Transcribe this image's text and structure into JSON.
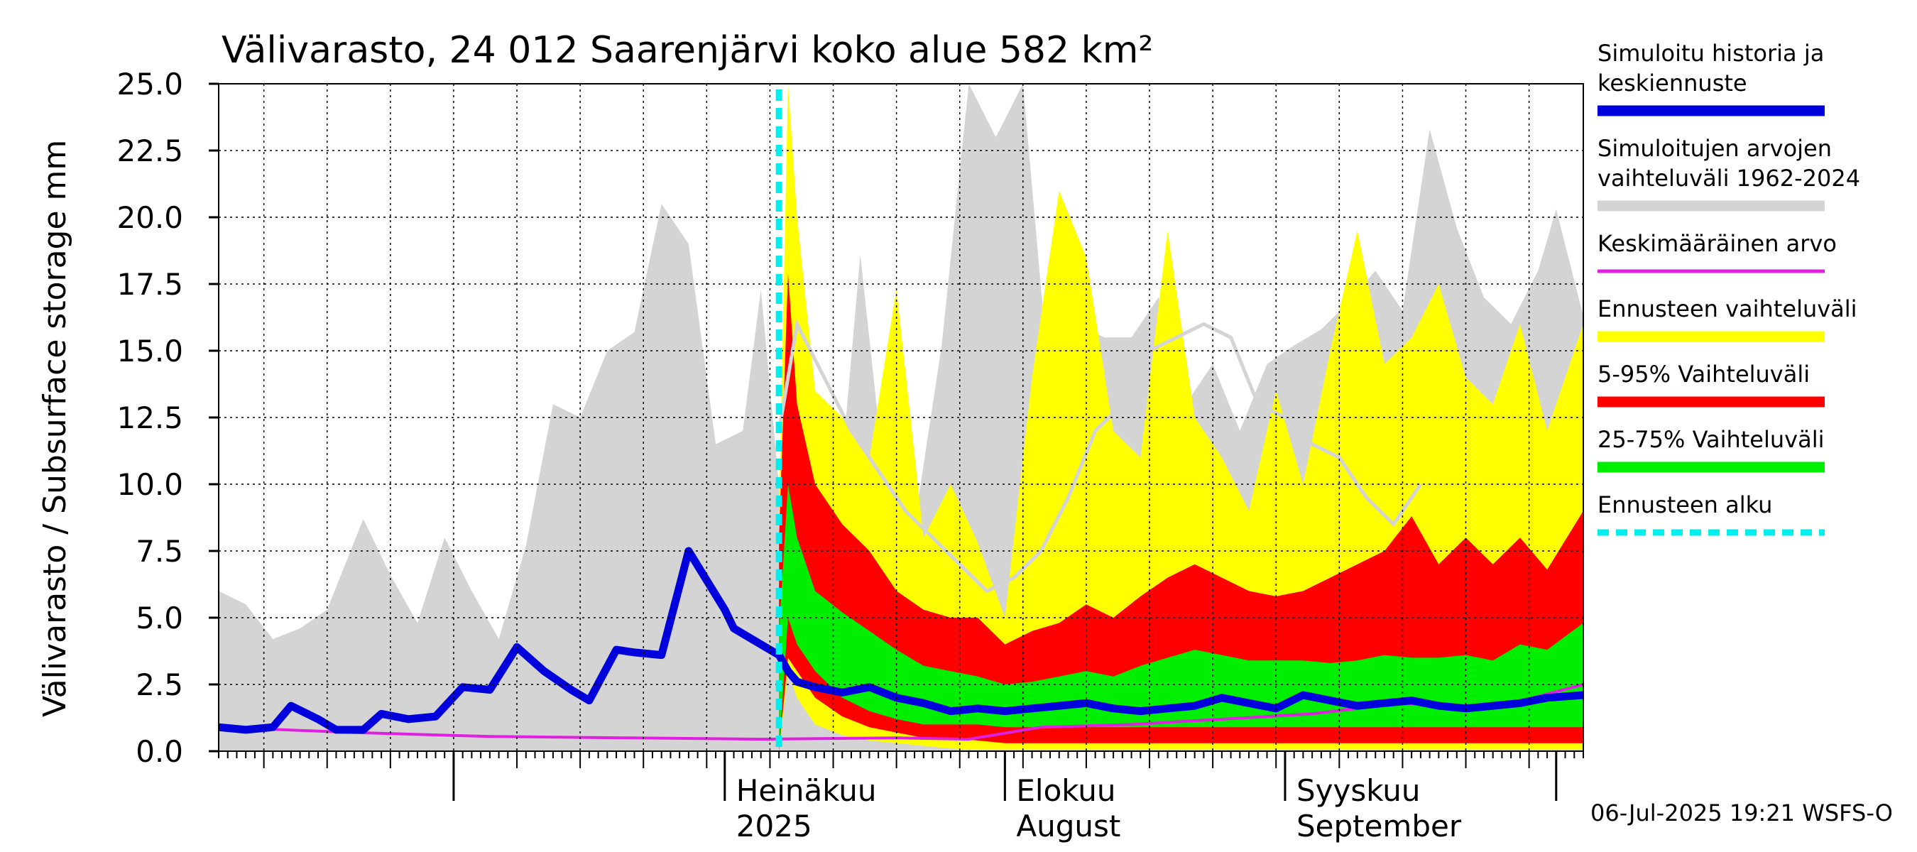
{
  "chart_data": {
    "type": "area",
    "title": "Välivarasto, 24 012 Saarenjärvi koko alue 582 km²",
    "ylabel": "Välivarasto / Subsurface storage  mm",
    "ylim": [
      0,
      25
    ],
    "yticks": [
      "0.0",
      "2.5",
      "5.0",
      "7.5",
      "10.0",
      "12.5",
      "15.0",
      "17.5",
      "20.0",
      "22.5",
      "25.0"
    ],
    "xlim": [
      "2025-05-06",
      "2025-10-04"
    ],
    "forecast_start": "2025-07-07",
    "grid": true,
    "legend_position": "right",
    "month_labels": [
      {
        "date": "2025-07-01",
        "line1": "Heinäkuu",
        "line2": "2025"
      },
      {
        "date": "2025-08-01",
        "line1": "Elokuu",
        "line2": "August"
      },
      {
        "date": "2025-09-01",
        "line1": "Syyskuu",
        "line2": "September"
      }
    ],
    "legend": [
      {
        "label_lines": [
          "Simuloitu historia ja",
          "keskiennuste"
        ],
        "color": "#0000dd",
        "style": "thick"
      },
      {
        "label_lines": [
          "Simuloitujen arvojen",
          "vaihteluväli 1962-2024"
        ],
        "color": "#d4d4d4",
        "style": "thick"
      },
      {
        "label_lines": [
          "Keskimääräinen arvo"
        ],
        "color": "#e020e0",
        "style": "thin"
      },
      {
        "label_lines": [
          "Ennusteen vaihteluväli"
        ],
        "color": "#ffff00",
        "style": "thick"
      },
      {
        "label_lines": [
          "5-95% Vaihteluväli"
        ],
        "color": "#ff0000",
        "style": "thick"
      },
      {
        "label_lines": [
          "25-75% Vaihteluväli"
        ],
        "color": "#00ee00",
        "style": "thick"
      },
      {
        "label_lines": [
          "Ennusteen alku"
        ],
        "color": "#00eeee",
        "style": "dashed"
      }
    ],
    "series": {
      "historical_range": {
        "x": [
          "2025-05-06",
          "2025-05-09",
          "2025-05-12",
          "2025-05-15",
          "2025-05-18",
          "2025-05-22",
          "2025-05-25",
          "2025-05-28",
          "2025-05-31",
          "2025-06-03",
          "2025-06-06",
          "2025-06-09",
          "2025-06-12",
          "2025-06-15",
          "2025-06-18",
          "2025-06-21",
          "2025-06-24",
          "2025-06-27",
          "2025-06-30",
          "2025-07-03",
          "2025-07-05",
          "2025-07-08",
          "2025-07-10",
          "2025-07-13",
          "2025-07-16",
          "2025-07-19",
          "2025-07-22",
          "2025-07-25",
          "2025-07-28",
          "2025-07-31",
          "2025-08-03",
          "2025-08-06",
          "2025-08-09",
          "2025-08-12",
          "2025-08-15",
          "2025-08-18",
          "2025-08-21",
          "2025-08-24",
          "2025-08-27",
          "2025-08-30",
          "2025-09-02",
          "2025-09-05",
          "2025-09-08",
          "2025-09-11",
          "2025-09-14",
          "2025-09-17",
          "2025-09-20",
          "2025-09-23",
          "2025-09-26",
          "2025-09-29",
          "2025-10-01",
          "2025-10-04"
        ],
        "upper": [
          6.0,
          5.5,
          4.2,
          4.6,
          5.3,
          8.7,
          6.6,
          4.8,
          8.0,
          6.0,
          4.2,
          7.7,
          13.0,
          12.5,
          15.0,
          15.7,
          20.5,
          19.0,
          11.5,
          12.0,
          17.3,
          6.3,
          9.7,
          7.0,
          18.6,
          9.2,
          8.5,
          15.2,
          25.0,
          23.0,
          25.0,
          13.5,
          16.0,
          15.5,
          15.5,
          17.0,
          13.0,
          14.5,
          12.0,
          14.5,
          15.2,
          15.8,
          16.8,
          18.0,
          16.5,
          23.3,
          19.6,
          17.0,
          16.0,
          18.0,
          20.3,
          16.3
        ],
        "lower": [
          0.0,
          0.0,
          0.0,
          0.0,
          0.0,
          0.0,
          0.0,
          0.0,
          0.0,
          0.0,
          0.0,
          0.0,
          0.0,
          0.0,
          0.0,
          0.0,
          0.0,
          0.0,
          0.0,
          0.0,
          0.0,
          0.0,
          0.0,
          0.0,
          0.0,
          0.0,
          0.0,
          0.0,
          0.0,
          0.0,
          0.0,
          0.0,
          0.0,
          0.0,
          0.0,
          0.0,
          0.0,
          0.0,
          0.0,
          0.0,
          0.0,
          0.0,
          0.0,
          0.0,
          0.0,
          0.0,
          0.0,
          0.0,
          0.0,
          0.0,
          0.0,
          0.0
        ]
      },
      "forecast_range": {
        "x": [
          "2025-07-07",
          "2025-07-08",
          "2025-07-09",
          "2025-07-11",
          "2025-07-14",
          "2025-07-17",
          "2025-07-20",
          "2025-07-23",
          "2025-07-26",
          "2025-07-29",
          "2025-08-01",
          "2025-08-04",
          "2025-08-07",
          "2025-08-10",
          "2025-08-13",
          "2025-08-16",
          "2025-08-19",
          "2025-08-22",
          "2025-08-25",
          "2025-08-28",
          "2025-08-31",
          "2025-09-03",
          "2025-09-06",
          "2025-09-09",
          "2025-09-12",
          "2025-09-15",
          "2025-09-18",
          "2025-09-21",
          "2025-09-24",
          "2025-09-27",
          "2025-09-30",
          "2025-10-04"
        ],
        "upper": [
          9.0,
          25.0,
          20.0,
          13.5,
          12.5,
          11.0,
          17.3,
          8.0,
          10.0,
          7.8,
          5.0,
          14.0,
          21.0,
          18.5,
          12.0,
          11.0,
          19.5,
          12.5,
          11.0,
          9.0,
          13.5,
          10.0,
          15.0,
          19.5,
          14.5,
          15.5,
          17.5,
          14.0,
          13.0,
          16.0,
          12.0,
          16.0
        ],
        "lower": [
          0.0,
          3.0,
          2.0,
          1.0,
          0.6,
          0.4,
          0.3,
          0.2,
          0.1,
          0.05,
          0.05,
          0.05,
          0.05,
          0.05,
          0.05,
          0.05,
          0.05,
          0.05,
          0.05,
          0.05,
          0.05,
          0.05,
          0.05,
          0.05,
          0.05,
          0.05,
          0.05,
          0.05,
          0.05,
          0.05,
          0.05,
          0.05
        ]
      },
      "range_5_95": {
        "x": [
          "2025-07-07",
          "2025-07-08",
          "2025-07-09",
          "2025-07-11",
          "2025-07-14",
          "2025-07-17",
          "2025-07-20",
          "2025-07-23",
          "2025-07-26",
          "2025-07-29",
          "2025-08-01",
          "2025-08-04",
          "2025-08-07",
          "2025-08-10",
          "2025-08-13",
          "2025-08-16",
          "2025-08-19",
          "2025-08-22",
          "2025-08-25",
          "2025-08-28",
          "2025-08-31",
          "2025-09-03",
          "2025-09-06",
          "2025-09-09",
          "2025-09-12",
          "2025-09-15",
          "2025-09-18",
          "2025-09-21",
          "2025-09-24",
          "2025-09-27",
          "2025-09-30",
          "2025-10-04"
        ],
        "upper": [
          8.0,
          17.9,
          13.0,
          10.0,
          8.5,
          7.5,
          6.0,
          5.3,
          5.0,
          5.0,
          4.0,
          4.5,
          4.8,
          5.5,
          5.0,
          5.8,
          6.5,
          7.0,
          6.5,
          6.0,
          5.8,
          6.0,
          6.5,
          7.0,
          7.5,
          8.8,
          7.0,
          8.0,
          7.0,
          8.0,
          6.8,
          9.0
        ],
        "lower": [
          0.0,
          3.5,
          3.0,
          2.0,
          1.3,
          0.9,
          0.7,
          0.5,
          0.5,
          0.4,
          0.3,
          0.3,
          0.3,
          0.3,
          0.3,
          0.3,
          0.3,
          0.3,
          0.3,
          0.3,
          0.3,
          0.3,
          0.3,
          0.3,
          0.3,
          0.3,
          0.3,
          0.3,
          0.3,
          0.3,
          0.3,
          0.3
        ]
      },
      "range_25_75": {
        "x": [
          "2025-07-07",
          "2025-07-08",
          "2025-07-09",
          "2025-07-11",
          "2025-07-14",
          "2025-07-17",
          "2025-07-20",
          "2025-07-23",
          "2025-07-26",
          "2025-07-29",
          "2025-08-01",
          "2025-08-04",
          "2025-08-07",
          "2025-08-10",
          "2025-08-13",
          "2025-08-16",
          "2025-08-19",
          "2025-08-22",
          "2025-08-25",
          "2025-08-28",
          "2025-08-31",
          "2025-09-03",
          "2025-09-06",
          "2025-09-09",
          "2025-09-12",
          "2025-09-15",
          "2025-09-18",
          "2025-09-21",
          "2025-09-24",
          "2025-09-27",
          "2025-09-30",
          "2025-10-04"
        ],
        "upper": [
          4.5,
          10.0,
          8.0,
          6.0,
          5.2,
          4.5,
          3.8,
          3.2,
          3.0,
          2.8,
          2.5,
          2.6,
          2.8,
          3.0,
          2.8,
          3.2,
          3.5,
          3.8,
          3.6,
          3.4,
          3.4,
          3.4,
          3.3,
          3.4,
          3.6,
          3.5,
          3.5,
          3.6,
          3.4,
          4.0,
          3.8,
          4.8
        ],
        "lower": [
          0.0,
          5.0,
          4.0,
          3.0,
          2.0,
          1.5,
          1.2,
          1.0,
          1.0,
          1.0,
          0.9,
          0.9,
          0.9,
          0.9,
          0.9,
          0.9,
          0.9,
          0.9,
          0.9,
          0.9,
          0.9,
          0.9,
          0.9,
          0.9,
          0.9,
          0.9,
          0.9,
          0.9,
          0.9,
          0.9,
          0.9,
          0.9
        ]
      },
      "historical_mean_forecast_period": {
        "x": [
          "2025-07-07",
          "2025-07-09",
          "2025-07-12",
          "2025-07-15",
          "2025-07-18",
          "2025-07-21",
          "2025-07-24",
          "2025-07-27",
          "2025-07-30",
          "2025-08-02",
          "2025-08-05",
          "2025-08-08",
          "2025-08-11",
          "2025-08-14",
          "2025-08-17",
          "2025-08-20",
          "2025-08-23",
          "2025-08-26",
          "2025-08-29",
          "2025-09-01",
          "2025-09-04",
          "2025-09-07",
          "2025-09-10",
          "2025-09-13",
          "2025-09-16"
        ],
        "values": [
          12.0,
          16.0,
          14.0,
          12.0,
          10.5,
          9.0,
          8.0,
          7.0,
          6.0,
          6.5,
          7.5,
          9.5,
          12.0,
          13.0,
          15.0,
          15.5,
          16.0,
          15.5,
          13.0,
          12.5,
          11.5,
          11.0,
          9.5,
          8.5,
          10.0
        ]
      },
      "mean_value": {
        "x": [
          "2025-05-06",
          "2025-05-21",
          "2025-06-05",
          "2025-06-20",
          "2025-07-05",
          "2025-07-20",
          "2025-07-28",
          "2025-08-05",
          "2025-08-15",
          "2025-08-25",
          "2025-09-04",
          "2025-09-14",
          "2025-09-24",
          "2025-10-04"
        ],
        "values": [
          0.9,
          0.7,
          0.55,
          0.5,
          0.45,
          0.5,
          0.45,
          0.9,
          1.0,
          1.2,
          1.4,
          1.8,
          1.6,
          2.5
        ]
      },
      "simulated_median": {
        "x": [
          "2025-05-06",
          "2025-05-09",
          "2025-05-12",
          "2025-05-14",
          "2025-05-17",
          "2025-05-19",
          "2025-05-22",
          "2025-05-24",
          "2025-05-27",
          "2025-05-30",
          "2025-06-02",
          "2025-06-05",
          "2025-06-08",
          "2025-06-11",
          "2025-06-14",
          "2025-06-16",
          "2025-06-19",
          "2025-06-21",
          "2025-06-24",
          "2025-06-27",
          "2025-07-01",
          "2025-07-02",
          "2025-07-04",
          "2025-07-06",
          "2025-07-07",
          "2025-07-08",
          "2025-07-09",
          "2025-07-11",
          "2025-07-14",
          "2025-07-17",
          "2025-07-20",
          "2025-07-23",
          "2025-07-26",
          "2025-07-29",
          "2025-08-01",
          "2025-08-04",
          "2025-08-07",
          "2025-08-10",
          "2025-08-13",
          "2025-08-16",
          "2025-08-19",
          "2025-08-22",
          "2025-08-25",
          "2025-08-28",
          "2025-08-31",
          "2025-09-03",
          "2025-09-06",
          "2025-09-09",
          "2025-09-12",
          "2025-09-15",
          "2025-09-18",
          "2025-09-21",
          "2025-09-24",
          "2025-09-27",
          "2025-09-30",
          "2025-10-04"
        ],
        "values": [
          0.9,
          0.8,
          0.9,
          1.7,
          1.2,
          0.8,
          0.8,
          1.4,
          1.2,
          1.3,
          2.4,
          2.3,
          3.9,
          3.0,
          2.3,
          1.9,
          3.8,
          3.7,
          3.6,
          7.5,
          5.3,
          4.6,
          4.2,
          3.8,
          3.6,
          3.0,
          2.6,
          2.4,
          2.2,
          2.4,
          2.0,
          1.8,
          1.5,
          1.6,
          1.5,
          1.6,
          1.7,
          1.8,
          1.6,
          1.5,
          1.6,
          1.7,
          2.0,
          1.8,
          1.6,
          2.1,
          1.9,
          1.7,
          1.8,
          1.9,
          1.7,
          1.6,
          1.7,
          1.8,
          2.0,
          2.1
        ]
      }
    }
  },
  "footer": {
    "timestamp": "06-Jul-2025 19:21 WSFS-O"
  }
}
